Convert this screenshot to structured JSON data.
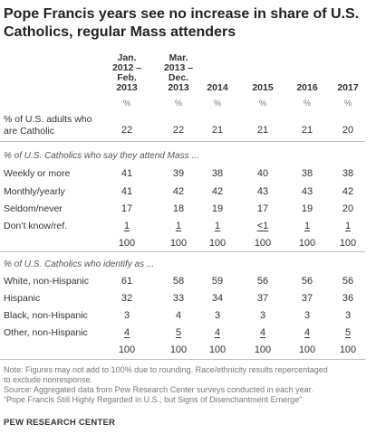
{
  "title": "Pope Francis years see no increase in share of U.S. Catholics, regular Mass attenders",
  "chart_data": {
    "type": "table",
    "columns": [
      {
        "lines": [
          "Jan.",
          "2012 –",
          "Feb.",
          "2013"
        ]
      },
      {
        "lines": [
          "Mar.",
          "2013 –",
          "Dec.",
          "2013"
        ]
      },
      {
        "lines": [
          "2014"
        ]
      },
      {
        "lines": [
          "2015"
        ]
      },
      {
        "lines": [
          "2016"
        ]
      },
      {
        "lines": [
          "2017"
        ]
      }
    ],
    "unit_row": [
      "%",
      "%",
      "%",
      "%",
      "%",
      "%"
    ],
    "sections": [
      {
        "heading": "",
        "rows": [
          {
            "label_lines": [
              "% of U.S. adults who",
              "are Catholic"
            ],
            "values": [
              "22",
              "22",
              "21",
              "21",
              "21",
              "20"
            ]
          }
        ],
        "total": []
      },
      {
        "heading": "% of U.S. Catholics who say they attend Mass ...",
        "rows": [
          {
            "label_lines": [
              "Weekly or more"
            ],
            "values": [
              "41",
              "39",
              "38",
              "40",
              "38",
              "38"
            ]
          },
          {
            "label_lines": [
              "Monthly/yearly"
            ],
            "values": [
              "41",
              "42",
              "42",
              "43",
              "43",
              "42"
            ]
          },
          {
            "label_lines": [
              "Seldom/never"
            ],
            "values": [
              "17",
              "18",
              "19",
              "17",
              "19",
              "20"
            ]
          },
          {
            "label_lines": [
              "Don’t know/ref."
            ],
            "values": [
              "1",
              "1",
              "1",
              "<1",
              "1",
              "1"
            ],
            "underline": true
          }
        ],
        "total": [
          "100",
          "100",
          "100",
          "100",
          "100",
          "100"
        ]
      },
      {
        "heading": "% of U.S. Catholics who identify as ...",
        "rows": [
          {
            "label_lines": [
              "White, non-Hispanic"
            ],
            "values": [
              "61",
              "58",
              "59",
              "56",
              "56",
              "56"
            ]
          },
          {
            "label_lines": [
              "Hispanic"
            ],
            "values": [
              "32",
              "33",
              "34",
              "37",
              "37",
              "36"
            ]
          },
          {
            "label_lines": [
              "Black, non-Hispanic"
            ],
            "values": [
              "3",
              "4",
              "3",
              "3",
              "3",
              "3"
            ]
          },
          {
            "label_lines": [
              "Other, non-Hispanic"
            ],
            "values": [
              "4",
              "5",
              "4",
              "4",
              "4",
              "5"
            ],
            "underline": true
          }
        ],
        "total": [
          "100",
          "100",
          "100",
          "100",
          "100",
          "100"
        ]
      }
    ]
  },
  "notes": [
    "Note: Figures may not add to 100% due to rounding. Race/ethnicity results repercentaged",
    "to exclude nonresponse.",
    "Source: Aggregated data from Pew Research Center surveys conducted in each year.",
    "“Pope Francis Still Highly Regarded in U.S., but Signs of Disenchantment Emerge”"
  ],
  "brand": "PEW RESEARCH CENTER"
}
